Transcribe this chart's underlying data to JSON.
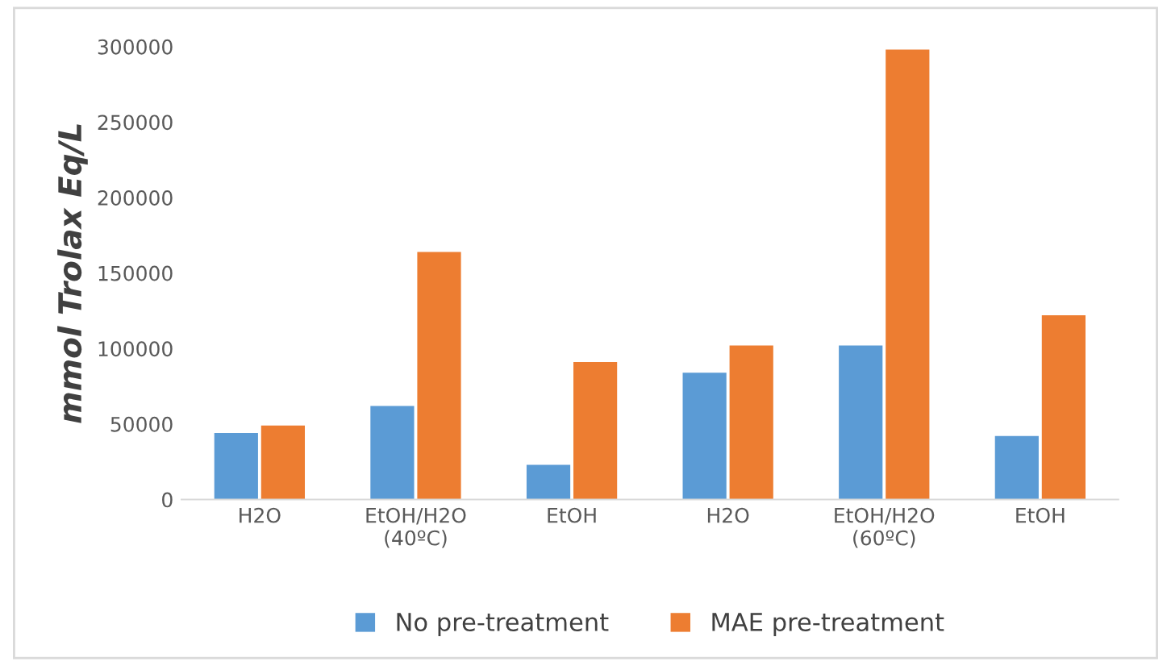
{
  "chart_data": {
    "type": "bar",
    "ylabel": "mmol Trolax Eq/L",
    "categories": [
      "H2O",
      "EtOH/H2O\n(40ºC)",
      "EtOH",
      "H2O",
      "EtOH/H2O\n(60ºC)",
      "EtOH"
    ],
    "series": [
      {
        "name": "No pre-treatment",
        "color": "#5b9bd5",
        "values": [
          44000,
          62000,
          23000,
          84000,
          102000,
          42000
        ]
      },
      {
        "name": "MAE pre-treatment",
        "color": "#ed7d31",
        "values": [
          49000,
          164000,
          91000,
          102000,
          298000,
          122000
        ]
      }
    ],
    "ylim": [
      0,
      300000
    ],
    "yticks": [
      0,
      50000,
      100000,
      150000,
      200000,
      250000,
      300000
    ],
    "grid": false,
    "legend": "bottom"
  }
}
